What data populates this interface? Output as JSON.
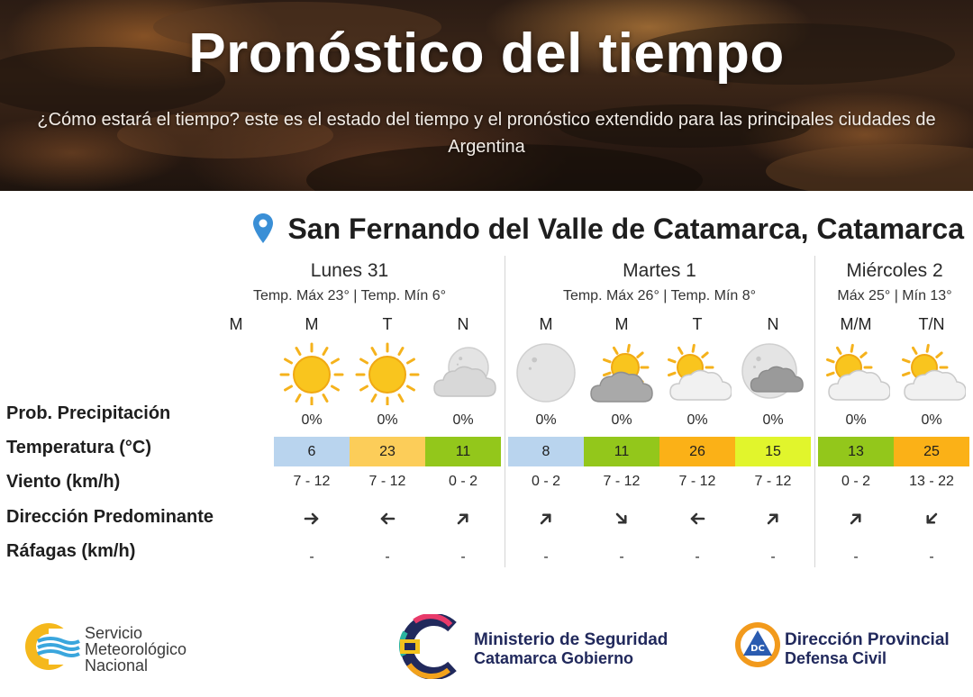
{
  "hero": {
    "title": "Pronóstico del tiempo",
    "subtitle": "¿Cómo estará el tiempo? este es el estado del tiempo y el pronóstico extendido para las principales ciudades de Argentina"
  },
  "location": {
    "name": "San Fernando del Valle de Catamarca, Catamarca",
    "pin_icon": "location-pin-icon",
    "pin_color": "#3a8fd6"
  },
  "row_labels": {
    "precip": "Prob. Precipitación",
    "temp": "Temperatura (°C)",
    "wind": "Viento (km/h)",
    "direction": "Dirección Predominante",
    "gusts": "Ráfagas (km/h)"
  },
  "days": [
    {
      "name": "Lunes 31",
      "temps": "Temp. Máx 23° | Temp. Mín 6°"
    },
    {
      "name": "Martes 1",
      "temps": "Temp. Máx 26° | Temp. Mín 8°"
    },
    {
      "name": "Miércoles 2",
      "temps": "Máx 25° | Mín 13°"
    }
  ],
  "periods": [
    {
      "label": "M",
      "icon": "",
      "precip": "",
      "temp": "",
      "temp_color": "",
      "wind": "",
      "direction": "",
      "gusts": ""
    },
    {
      "label": "M",
      "icon": "sun-icon",
      "precip": "0%",
      "temp": "6",
      "temp_color": "#b9d4ee",
      "wind": "7 - 12",
      "direction": "east-arrow-icon",
      "gusts": "-"
    },
    {
      "label": "T",
      "icon": "sun-icon",
      "precip": "0%",
      "temp": "23",
      "temp_color": "#fccd59",
      "wind": "7 - 12",
      "direction": "west-arrow-icon",
      "gusts": "-"
    },
    {
      "label": "N",
      "icon": "moon-cloud-icon",
      "precip": "0%",
      "temp": "11",
      "temp_color": "#93c71b",
      "wind": "0 - 2",
      "direction": "northeast-arrow-icon",
      "gusts": "-"
    },
    {
      "label": "M",
      "icon": "moon-icon",
      "precip": "0%",
      "temp": "8",
      "temp_color": "#b9d4ee",
      "wind": "0 - 2",
      "direction": "northeast-arrow-icon",
      "gusts": "-"
    },
    {
      "label": "M",
      "icon": "sun-cloud-dark-icon",
      "precip": "0%",
      "temp": "11",
      "temp_color": "#93c71b",
      "wind": "7 - 12",
      "direction": "southeast-arrow-icon",
      "gusts": "-"
    },
    {
      "label": "T",
      "icon": "sun-cloud-icon",
      "precip": "0%",
      "temp": "26",
      "temp_color": "#fbb117",
      "wind": "7 - 12",
      "direction": "west-arrow-icon",
      "gusts": "-"
    },
    {
      "label": "N",
      "icon": "moon-cloud-dark-icon",
      "precip": "0%",
      "temp": "15",
      "temp_color": "#e1f52c",
      "wind": "7 - 12",
      "direction": "northeast-arrow-icon",
      "gusts": "-"
    },
    {
      "label": "M/M",
      "icon": "sun-cloud-icon",
      "precip": "0%",
      "temp": "13",
      "temp_color": "#93c71b",
      "wind": "0 - 2",
      "direction": "northeast-arrow-icon",
      "gusts": "-"
    },
    {
      "label": "T/N",
      "icon": "sun-cloud-icon",
      "precip": "0%",
      "temp": "25",
      "temp_color": "#fbb117",
      "wind": "13 - 22",
      "direction": "southwest-arrow-icon",
      "gusts": "-"
    }
  ],
  "footer": {
    "smn": [
      "Servicio",
      "Meteorológico",
      "Nacional"
    ],
    "ministry_title": "Ministerio de Seguridad",
    "ministry_sub": "Catamarca Gobierno",
    "defensa_title": "Dirección Provincial",
    "defensa_sub": "Defensa Civil",
    "defensa_badge": "DC"
  }
}
